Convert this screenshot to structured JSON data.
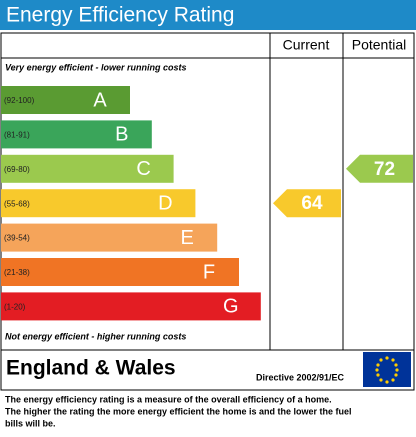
{
  "header": {
    "title": "Energy Efficiency Rating"
  },
  "columns": [
    "Current",
    "Potential"
  ],
  "top_note": "Very energy efficient - lower running costs",
  "bands": [
    {
      "range": "(92-100)",
      "letter": "A",
      "color": "#5a9b32"
    },
    {
      "range": "(81-91)",
      "letter": "B",
      "color": "#3aa55a"
    },
    {
      "range": "(69-80)",
      "letter": "C",
      "color": "#9bc94e"
    },
    {
      "range": "(55-68)",
      "letter": "D",
      "color": "#f8c92c"
    },
    {
      "range": "(39-54)",
      "letter": "E",
      "color": "#f5a45a"
    },
    {
      "range": "(21-38)",
      "letter": "F",
      "color": "#f07424"
    },
    {
      "range": "(1-20)",
      "letter": "G",
      "color": "#e31d23"
    }
  ],
  "bottom_note": "Not energy efficient - higher running costs",
  "ratings": [
    {
      "value": 64
    },
    {
      "value": 72
    }
  ],
  "footer": {
    "region": "England & Wales",
    "directive": "Directive 2002/91/EC"
  },
  "footnote": [
    "The energy efficiency rating is a measure of the overall efficiency of a home.",
    "The higher the rating the more energy efficient the home is and the lower the fuel",
    "bills will be."
  ]
}
